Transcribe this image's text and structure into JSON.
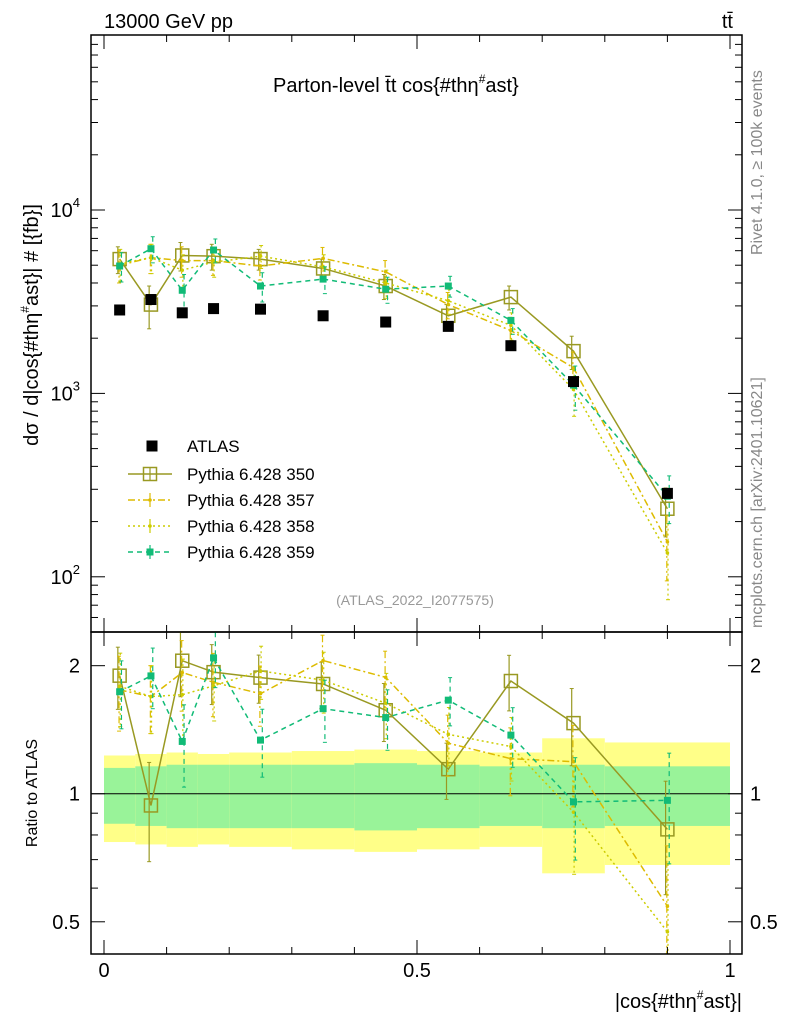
{
  "header": {
    "energy_label": "13000 GeV pp",
    "process_label": "tt̄"
  },
  "side_labels": {
    "rivet": "Rivet 4.1.0, ≥ 100k events",
    "mcplots": "mcplots.cern.ch [arXiv:2401.10621]"
  },
  "chart_data": {
    "type": "line",
    "title": "Parton-level t̄t cos{#thη#ast}",
    "title_main": "Parton-level t̄t cos{#thη",
    "title_sup": "#",
    "title_end": "ast}",
    "watermark": "(ATLAS_2022_I2077575)",
    "xlabel": "|cos{#thη#ast}|",
    "xlabel_main": "|cos{#thη",
    "xlabel_sup": "#",
    "xlabel_end": "ast}|",
    "ylabel": "dσ / d|cos{#thη#ast}| # [{fb}]",
    "ylabel_main": "dσ / d|cos{#thη",
    "ylabel_sup": "#",
    "ylabel_end": "ast}| # [{fb}]",
    "ratio_ylabel": "Ratio to ATLAS",
    "xlim": [
      0,
      1
    ],
    "ylim": [
      50,
      90000
    ],
    "yscale": "log",
    "ratio_ylim": [
      0.42,
      2.4
    ],
    "x_ticks": [
      {
        "value": 0,
        "label": "0"
      },
      {
        "value": 0.5,
        "label": "0.5"
      },
      {
        "value": 1,
        "label": "1"
      }
    ],
    "y_ticks": [
      {
        "value": 100,
        "base": "10",
        "exp": "2"
      },
      {
        "value": 1000,
        "base": "10",
        "exp": "3"
      },
      {
        "value": 10000,
        "base": "10",
        "exp": "4"
      }
    ],
    "ratio_ticks": [
      {
        "value": 0.5,
        "label": "0.5"
      },
      {
        "value": 1,
        "label": "1"
      },
      {
        "value": 2,
        "label": "2"
      }
    ],
    "bin_edges": [
      0,
      0.05,
      0.1,
      0.15,
      0.2,
      0.3,
      0.4,
      0.5,
      0.6,
      0.7,
      0.8,
      1.0
    ],
    "x": [
      0.025,
      0.075,
      0.125,
      0.175,
      0.25,
      0.35,
      0.45,
      0.55,
      0.65,
      0.75,
      0.9
    ],
    "reference": {
      "name": "ATLAS",
      "color": "#000000",
      "values": [
        2850,
        3250,
        2750,
        2900,
        2880,
        2650,
        2450,
        2320,
        1820,
        1160,
        285
      ],
      "stat_band": [
        0.15,
        0.16,
        0.17,
        0.17,
        0.17,
        0.17,
        0.18,
        0.17,
        0.16,
        0.17,
        0.16
      ],
      "total_band": [
        0.23,
        0.24,
        0.25,
        0.24,
        0.25,
        0.26,
        0.27,
        0.26,
        0.25,
        0.35,
        0.32
      ]
    },
    "series": [
      {
        "name": "Pythia 6.428 350",
        "color": "#999922",
        "style": "solid",
        "marker": "open-square",
        "values": [
          5400,
          3050,
          5650,
          5600,
          5400,
          4800,
          3850,
          2650,
          3350,
          1700,
          235
        ],
        "errors": [
          900,
          800,
          1000,
          900,
          700,
          600,
          600,
          400,
          500,
          350,
          70
        ]
      },
      {
        "name": "Pythia 6.428 357",
        "color": "#ddbb00",
        "style": "dashdot",
        "marker": "small-dot",
        "values": [
          5000,
          5500,
          5300,
          5300,
          4950,
          5450,
          4600,
          3050,
          2200,
          1380,
          155
        ],
        "errors": [
          1000,
          1000,
          1000,
          900,
          800,
          800,
          700,
          500,
          400,
          300,
          60
        ]
      },
      {
        "name": "Pythia 6.428 358",
        "color": "#cccc00",
        "style": "dotted",
        "marker": "small-dot",
        "values": [
          5100,
          5500,
          4700,
          5200,
          5600,
          4900,
          4000,
          3200,
          2350,
          1050,
          135
        ],
        "errors": [
          1000,
          1000,
          1000,
          900,
          800,
          800,
          700,
          500,
          400,
          300,
          60
        ]
      },
      {
        "name": "Pythia 6.428 359",
        "color": "#11bb77",
        "style": "dashed",
        "marker": "filled-square",
        "values": [
          4950,
          6150,
          3650,
          6050,
          3850,
          4200,
          3700,
          3850,
          2500,
          1110,
          275
        ],
        "errors": [
          900,
          1000,
          800,
          900,
          700,
          700,
          600,
          500,
          400,
          300,
          80
        ]
      }
    ]
  }
}
